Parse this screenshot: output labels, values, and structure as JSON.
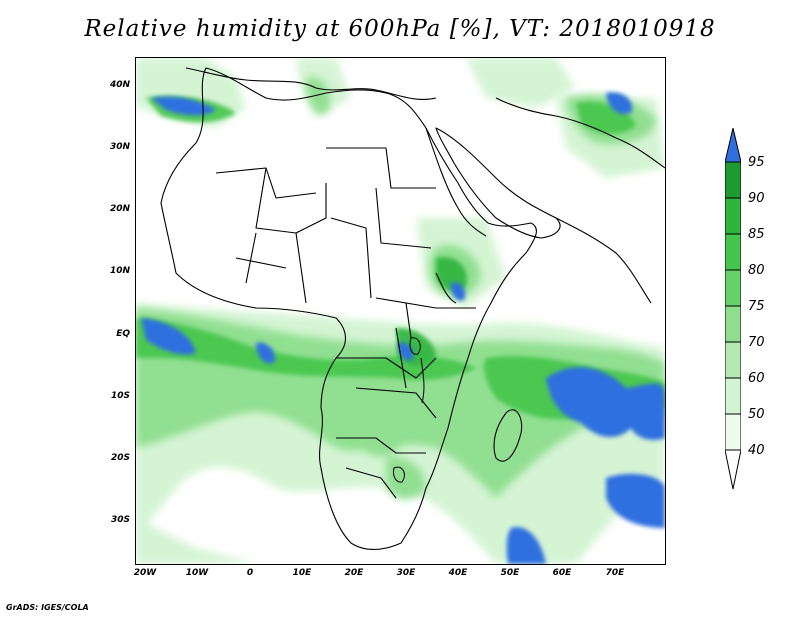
{
  "title": "Relative humidity at 600hPa [%], VT: 2018010918",
  "credit": "GrADS: IGES/COLA",
  "map": {
    "lat_labels": [
      "40N",
      "30N",
      "20N",
      "10N",
      "EQ",
      "10S",
      "20S",
      "30S"
    ],
    "lon_labels": [
      "20W",
      "10W",
      "0",
      "10E",
      "20E",
      "30E",
      "40E",
      "50E",
      "60E",
      "70E"
    ]
  },
  "colorbar": {
    "levels": [
      "95",
      "90",
      "85",
      "80",
      "75",
      "70",
      "60",
      "50",
      "40"
    ],
    "colors": {
      "above_95": "#2f6fdf",
      "90_95": "#1f9a30",
      "85_90": "#2fb43c",
      "80_85": "#44c64c",
      "75_80": "#66d26a",
      "70_75": "#8ede8e",
      "60_70": "#b2eab2",
      "50_60": "#d2f4d2",
      "40_50": "#ecfcec"
    }
  }
}
